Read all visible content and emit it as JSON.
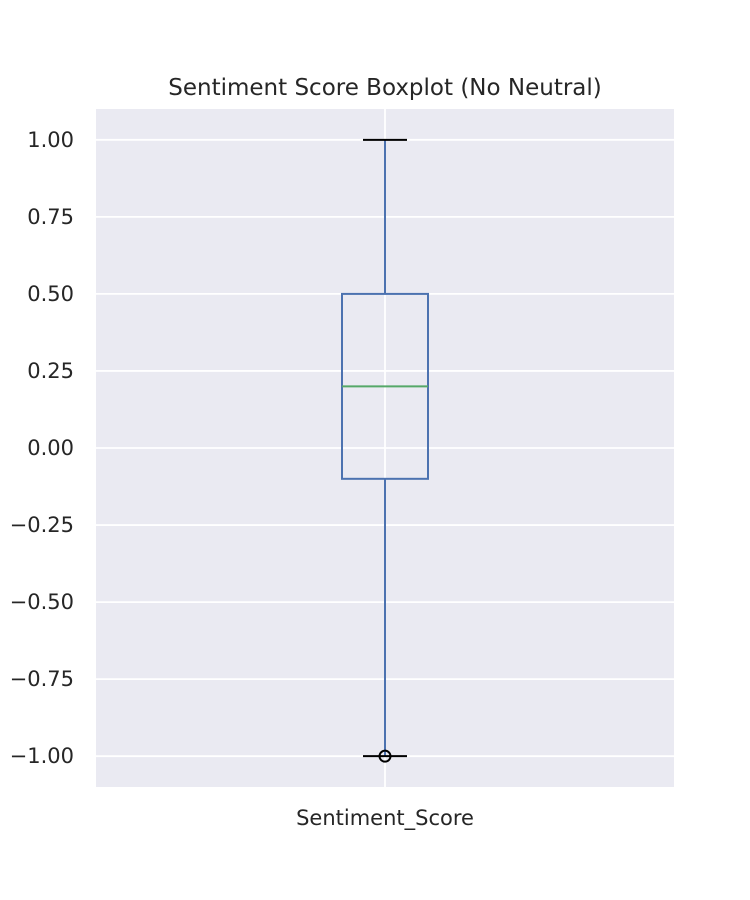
{
  "chart_data": {
    "type": "box",
    "title": "Sentiment Score Boxplot (No Neutral)",
    "categories": [
      "Sentiment_Score"
    ],
    "series": [
      {
        "whisker_low": -1.0,
        "q1": -0.1,
        "median": 0.2,
        "q3": 0.5,
        "whisker_high": 1.0,
        "outliers": [
          -1.0
        ]
      }
    ],
    "yticks": [
      1.0,
      0.75,
      0.5,
      0.25,
      0.0,
      -0.25,
      -0.5,
      -0.75,
      -1.0
    ],
    "ytick_labels": [
      "1.00",
      "0.75",
      "0.50",
      "0.25",
      "0.00",
      "−0.25",
      "−0.50",
      "−0.75",
      "−1.00"
    ],
    "ylim": [
      -1.1,
      1.1
    ],
    "grid": true,
    "colors": {
      "background": "#eaeaf2",
      "grid": "#ffffff",
      "box": "#4c72b0",
      "median": "#55a868",
      "caps": "#000000",
      "outlier": "#000000"
    }
  }
}
